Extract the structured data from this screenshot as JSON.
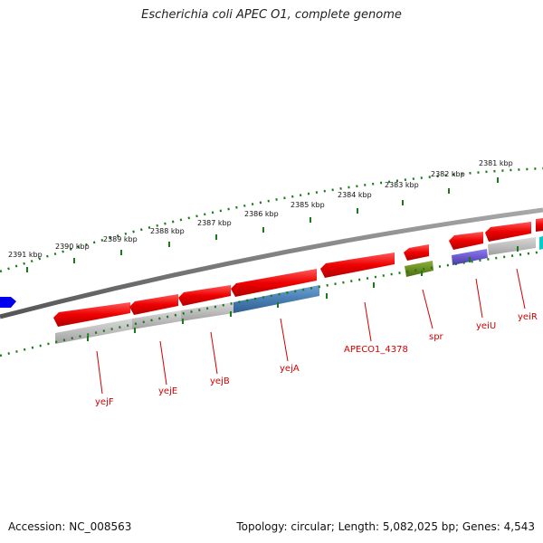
{
  "title": "Escherichia coli APEC O1, complete genome",
  "footer": {
    "accession": "Accession: NC_008563",
    "stats": "Topology: circular; Length: 5,082,025 bp; Genes: 4,543"
  },
  "kbp_labels": [
    "2391 kbp",
    "2390 kbp",
    "2389 kbp",
    "2388 kbp",
    "2387 kbp",
    "2386 kbp",
    "2385 kbp",
    "2384 kbp",
    "2383 kbp",
    "2382 kbp",
    "2381 kbp"
  ],
  "gene_labels": [
    "yejF",
    "yejE",
    "yejB",
    "yejA",
    "APECO1_4378",
    "spr",
    "yeiU",
    "yeiR"
  ],
  "colors": {
    "cds_red": "#ee0000",
    "gray_feature": "#bdbdbd",
    "steel_blue": "#4a7fb5",
    "olive_green": "#6b8e23",
    "purple": "#6a5acd",
    "blue": "#0000ee",
    "cyan": "#00cccc",
    "backbone": "#7a7a7a",
    "tick_green": "#1a7a1a",
    "label_red": "#d40000"
  }
}
